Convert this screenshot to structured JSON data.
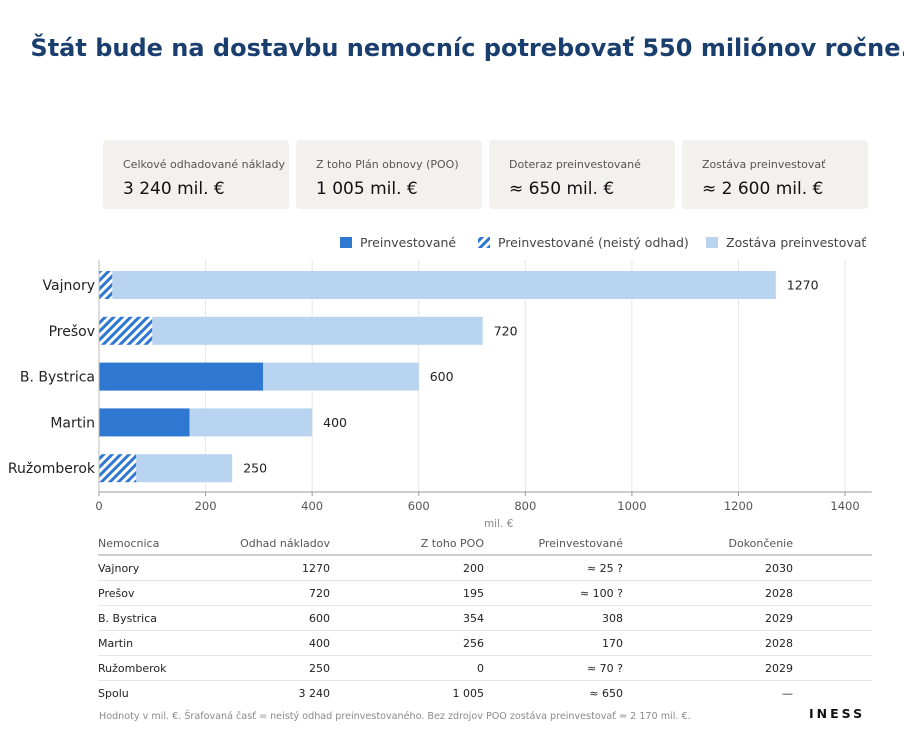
{
  "title": "Štát bude na dostavbu nemocníc potrebovať 550 miliónov ročne.",
  "kpis": [
    {
      "label": "Celkové odhadované náklady",
      "value": "3 240 mil. €"
    },
    {
      "label": "Z toho Plán obnovy (POO)",
      "value": "1 005 mil. €"
    },
    {
      "label": "Doteraz preinvestované",
      "value": "≈ 650 mil. €"
    },
    {
      "label": "Zostáva preinvestovať",
      "value": "≈ 2 600 mil. €"
    }
  ],
  "colors": {
    "invested": "#2e78d2",
    "remaining": "#b8d4f1",
    "hatch_bg": "#ffffff",
    "title": "#1a3e6e"
  },
  "chart_data": {
    "type": "bar",
    "orientation": "horizontal",
    "stacked": true,
    "categories": [
      "Vajnory",
      "Prešov",
      "B. Bystrica",
      "Martin",
      "Ružomberok"
    ],
    "totals": [
      1270,
      720,
      600,
      400,
      250
    ],
    "total_labels": [
      "1270",
      "720",
      "600",
      "400",
      "250"
    ],
    "series": [
      {
        "name": "Preinvestované",
        "values": [
          0,
          0,
          308,
          170,
          0
        ]
      },
      {
        "name": "Preinvestované (neistý odhad)",
        "values": [
          25,
          100,
          0,
          0,
          70
        ]
      },
      {
        "name": "Zostáva preinvestovať",
        "values": [
          1245,
          620,
          292,
          230,
          180
        ]
      }
    ],
    "xlabel": "mil. €",
    "ylabel": "",
    "xlim": [
      0,
      1450
    ],
    "xticks": [
      0,
      200,
      400,
      600,
      800,
      1000,
      1200,
      1400
    ],
    "xtick_labels": [
      "0",
      "200",
      "400",
      "600",
      "800",
      "1000",
      "1200",
      "1400"
    ],
    "grid": "vertical",
    "legend": "top-right"
  },
  "table": {
    "headers": [
      "Nemocnica",
      "Odhad nákladov",
      "Z toho POO",
      "Preinvestované",
      "Dokončenie"
    ],
    "rows": [
      [
        "Vajnory",
        "1270",
        "200",
        "≈ 25 ?",
        "2030"
      ],
      [
        "Prešov",
        "720",
        "195",
        "≈ 100 ?",
        "2028"
      ],
      [
        "B. Bystrica",
        "600",
        "354",
        "308",
        "2029"
      ],
      [
        "Martin",
        "400",
        "256",
        "170",
        "2028"
      ],
      [
        "Ružomberok",
        "250",
        "0",
        "≈ 70 ?",
        "2029"
      ]
    ],
    "total": [
      "Spolu",
      "3 240",
      "1 005",
      "≈ 650",
      "—"
    ]
  },
  "footnote": "Hodnoty v mil. €.  Šrafovaná časť = neistý odhad preinvestovaného.  Bez zdrojov POO zostáva preinvestovať ≈ 2 170 mil. €.",
  "logo": "INESS"
}
